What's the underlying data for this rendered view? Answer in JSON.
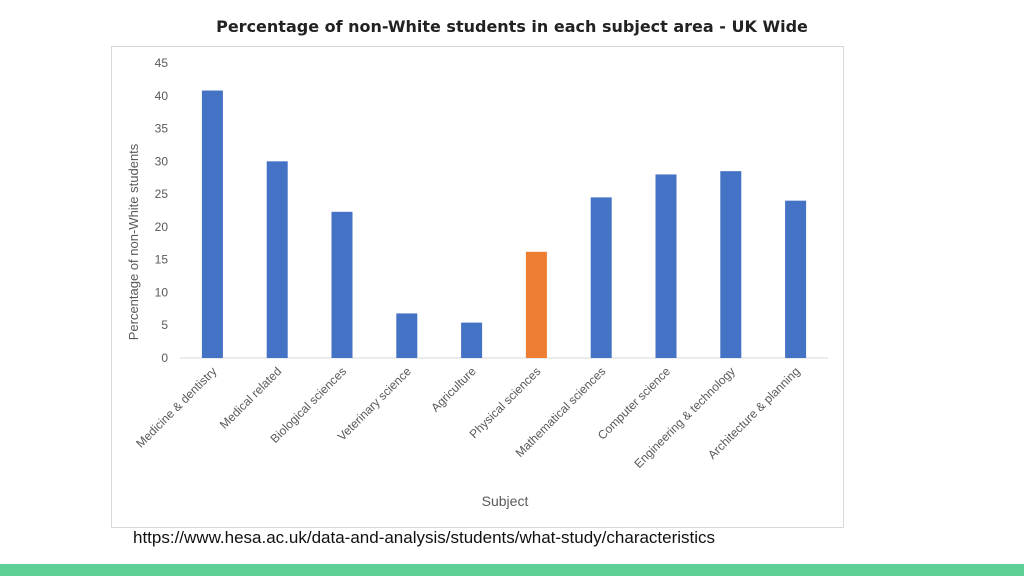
{
  "slide": {
    "title": "Percentage of non-White students in each subject area - UK Wide",
    "source_url": "https://www.hesa.ac.uk/data-and-analysis/students/what-study/characteristics",
    "band_color": "#5ecf96"
  },
  "chart_data": {
    "type": "bar",
    "title": "",
    "xlabel": "Subject",
    "ylabel": "Percentage of non-White students",
    "ylim": [
      0,
      45
    ],
    "yticks": [
      0,
      5,
      10,
      15,
      20,
      25,
      30,
      35,
      40,
      45
    ],
    "grid": false,
    "legend": "none",
    "categories": [
      "Medicine & dentistry",
      "Medical related",
      "Biological sciences",
      "Veterinary science",
      "Agriculture",
      "Physical sciences",
      "Mathematical sciences",
      "Computer science",
      "Engineering & technology",
      "Architecture & planning"
    ],
    "values": [
      40.8,
      30.0,
      22.3,
      6.8,
      5.4,
      16.2,
      24.5,
      28.0,
      28.5,
      24.0
    ],
    "colors": [
      "#4472c4",
      "#4472c4",
      "#4472c4",
      "#4472c4",
      "#4472c4",
      "#ed7d31",
      "#4472c4",
      "#4472c4",
      "#4472c4",
      "#4472c4"
    ]
  }
}
